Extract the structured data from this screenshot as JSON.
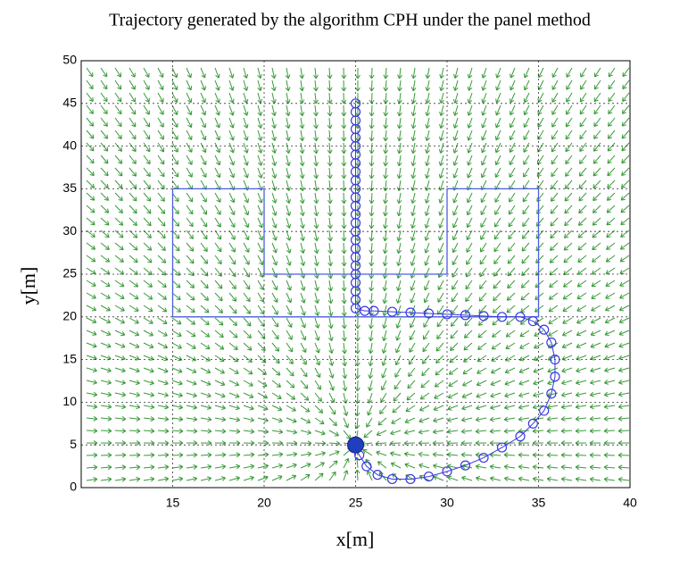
{
  "chart_data": {
    "type": "trajectory",
    "title": "Trajectory generated by the algorithm CPH under the panel method",
    "xlabel": "x[m]",
    "ylabel": "y[m]",
    "xlim": [
      10,
      40
    ],
    "ylim": [
      0,
      50
    ],
    "xticks": [
      15,
      20,
      25,
      30,
      35,
      40
    ],
    "yticks": [
      0,
      5,
      10,
      15,
      20,
      25,
      30,
      35,
      40,
      45,
      50
    ],
    "grid": true,
    "obstacle": {
      "color": "#4a5fe0",
      "x": [
        15,
        15,
        20,
        20,
        30,
        30,
        35,
        35,
        15
      ],
      "y": [
        20,
        35,
        35,
        25,
        25,
        35,
        35,
        20,
        20
      ]
    },
    "goal": {
      "color": "#1f3fbf",
      "x": 25,
      "y": 5
    },
    "field_color": "#3a9a3a",
    "series": [
      {
        "color": "#3a3ae0",
        "x": [
          25,
          25,
          25,
          25,
          25,
          25,
          25,
          25,
          25,
          25,
          25,
          25,
          25,
          25,
          25,
          25,
          25,
          25,
          25,
          25,
          25,
          25,
          25,
          25,
          25,
          25.5,
          26,
          27,
          28,
          29,
          30,
          31,
          32,
          33,
          34,
          34.7,
          35.3,
          35.7,
          35.9,
          35.9,
          35.7,
          35.3,
          34.7,
          34,
          33,
          32,
          31,
          30,
          29,
          28,
          27,
          26.2,
          25.6,
          25.2,
          25
        ],
        "y": [
          45,
          44,
          43,
          42,
          41,
          40,
          39,
          38,
          37,
          36,
          35,
          34,
          33,
          32,
          31,
          30,
          29,
          28,
          27,
          26,
          25,
          24,
          23,
          22,
          21,
          20.7,
          20.7,
          20.6,
          20.5,
          20.4,
          20.3,
          20.2,
          20.1,
          20,
          20,
          19.5,
          18.5,
          17,
          15,
          13,
          11,
          9,
          7.5,
          6,
          4.7,
          3.5,
          2.6,
          1.9,
          1.3,
          1,
          1,
          1.5,
          2.5,
          3.8,
          4.8
        ]
      }
    ]
  }
}
